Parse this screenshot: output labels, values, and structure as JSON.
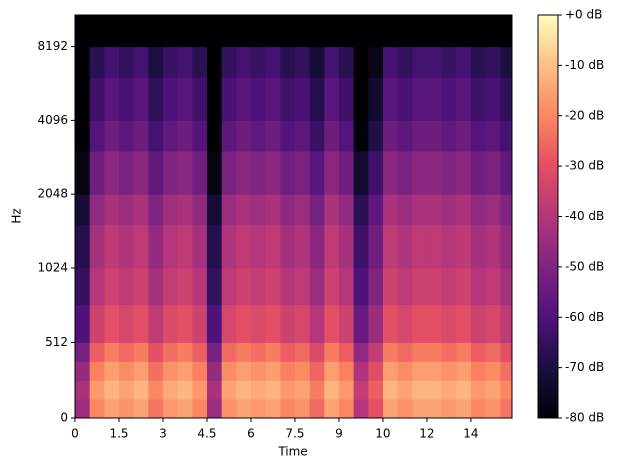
{
  "chart_data": {
    "type": "spectrogram",
    "cmap": "magma",
    "xlabel": "Time",
    "ylabel": "Hz",
    "yscale": "symlog",
    "linthresh": 1000,
    "base": 2,
    "xlim": [
      0,
      14.9
    ],
    "xticks": [
      0,
      1.5,
      3,
      4.5,
      6,
      7.5,
      9,
      {
        "value": 10.5,
        "label": "10"
      },
      12,
      {
        "value": 13.5,
        "label": "14"
      }
    ],
    "ylim": [
      0,
      11025
    ],
    "yticks": [
      0,
      512,
      1024,
      2048,
      4096,
      8192
    ],
    "clim": [
      -80,
      0
    ],
    "cticks": [
      {
        "value": 0,
        "label": "+0 dB"
      },
      {
        "value": -10,
        "label": "-10 dB"
      },
      {
        "value": -20,
        "label": "-20 dB"
      },
      {
        "value": -30,
        "label": "-30 dB"
      },
      {
        "value": -40,
        "label": "-40 dB"
      },
      {
        "value": -50,
        "label": "-50 dB"
      },
      {
        "value": -60,
        "label": "-60 dB"
      },
      {
        "value": -70,
        "label": "-70 dB"
      },
      {
        "value": -80,
        "label": "-80 dB"
      }
    ],
    "x_bins": [
      0,
      0.5,
      1,
      1.5,
      2,
      2.5,
      3,
      3.5,
      4,
      4.5,
      5,
      5.5,
      6,
      6.5,
      7,
      7.5,
      8,
      8.5,
      9,
      9.5,
      10,
      10.5,
      11,
      11.5,
      12,
      12.5,
      13,
      13.5,
      14,
      14.5,
      14.9
    ],
    "y_bins": [
      0,
      128,
      256,
      384,
      512,
      768,
      1024,
      1536,
      2048,
      3072,
      4096,
      6144,
      8192,
      11025
    ],
    "values": [
      [
        -45,
        -20,
        -15,
        -18,
        -15,
        -23,
        -17,
        -15,
        -20,
        -45,
        -18,
        -15,
        -17,
        -15,
        -20,
        -18,
        -25,
        -15,
        -20,
        -40,
        -30,
        -15,
        -18,
        -15,
        -15,
        -17,
        -15,
        -20,
        -18,
        -23
      ],
      [
        -42,
        -17,
        -12,
        -15,
        -12,
        -20,
        -14,
        -12,
        -17,
        -42,
        -15,
        -12,
        -14,
        -12,
        -17,
        -15,
        -22,
        -12,
        -17,
        -37,
        -27,
        -12,
        -15,
        -12,
        -12,
        -14,
        -12,
        -17,
        -15,
        -20
      ],
      [
        -46,
        -21,
        -16,
        -19,
        -16,
        -24,
        -18,
        -16,
        -21,
        -46,
        -19,
        -16,
        -18,
        -16,
        -21,
        -19,
        -26,
        -16,
        -21,
        -41,
        -31,
        -16,
        -19,
        -16,
        -16,
        -18,
        -16,
        -21,
        -19,
        -24
      ],
      [
        -52,
        -27,
        -22,
        -25,
        -22,
        -30,
        -24,
        -22,
        -27,
        -52,
        -25,
        -22,
        -24,
        -22,
        -27,
        -25,
        -32,
        -22,
        -27,
        -47,
        -37,
        -22,
        -25,
        -22,
        -22,
        -24,
        -22,
        -27,
        -25,
        -30
      ],
      [
        -60,
        -35,
        -30,
        -33,
        -30,
        -38,
        -32,
        -30,
        -35,
        -60,
        -33,
        -30,
        -32,
        -30,
        -35,
        -33,
        -40,
        -30,
        -35,
        -55,
        -45,
        -30,
        -33,
        -30,
        -30,
        -32,
        -30,
        -35,
        -33,
        -38
      ],
      [
        -65,
        -40,
        -35,
        -38,
        -35,
        -43,
        -37,
        -35,
        -40,
        -65,
        -38,
        -35,
        -37,
        -35,
        -40,
        -38,
        -45,
        -35,
        -40,
        -60,
        -50,
        -35,
        -38,
        -35,
        -35,
        -37,
        -35,
        -40,
        -38,
        -43
      ],
      [
        -68,
        -43,
        -38,
        -41,
        -38,
        -46,
        -40,
        -38,
        -43,
        -68,
        -41,
        -38,
        -40,
        -38,
        -43,
        -41,
        -48,
        -38,
        -43,
        -63,
        -53,
        -38,
        -41,
        -38,
        -38,
        -40,
        -38,
        -43,
        -41,
        -46
      ],
      [
        -72,
        -47,
        -42,
        -45,
        -42,
        -50,
        -44,
        -42,
        -47,
        -72,
        -45,
        -42,
        -44,
        -42,
        -47,
        -45,
        -52,
        -42,
        -47,
        -67,
        -57,
        -42,
        -45,
        -42,
        -42,
        -44,
        -42,
        -47,
        -45,
        -50
      ],
      [
        -78,
        -53,
        -48,
        -51,
        -48,
        -56,
        -50,
        -48,
        -53,
        -78,
        -51,
        -48,
        -50,
        -48,
        -53,
        -51,
        -58,
        -48,
        -53,
        -73,
        -63,
        -48,
        -51,
        -48,
        -48,
        -50,
        -48,
        -53,
        -51,
        -56
      ],
      [
        -80,
        -59,
        -54,
        -57,
        -54,
        -62,
        -56,
        -54,
        -59,
        -80,
        -57,
        -54,
        -56,
        -54,
        -59,
        -57,
        -64,
        -54,
        -59,
        -79,
        -69,
        -54,
        -57,
        -54,
        -54,
        -56,
        -54,
        -59,
        -57,
        -62
      ],
      [
        -80,
        -63,
        -58,
        -61,
        -58,
        -66,
        -60,
        -58,
        -63,
        -80,
        -61,
        -58,
        -60,
        -58,
        -63,
        -61,
        -68,
        -58,
        -63,
        -80,
        -73,
        -58,
        -61,
        -58,
        -58,
        -60,
        -58,
        -63,
        -61,
        -66
      ],
      [
        -80,
        -67,
        -62,
        -65,
        -62,
        -70,
        -64,
        -62,
        -67,
        -80,
        -65,
        -62,
        -64,
        -62,
        -67,
        -65,
        -72,
        -62,
        -67,
        -80,
        -77,
        -62,
        -65,
        -62,
        -62,
        -64,
        -62,
        -67,
        -65,
        -70
      ],
      [
        -80,
        -80,
        -80,
        -80,
        -80,
        -80,
        -80,
        -80,
        -80,
        -80,
        -80,
        -80,
        -80,
        -80,
        -80,
        -80,
        -80,
        -80,
        -80,
        -80,
        -80,
        -80,
        -80,
        -80,
        -80,
        -80,
        -80,
        -80,
        -80,
        -80
      ]
    ]
  }
}
